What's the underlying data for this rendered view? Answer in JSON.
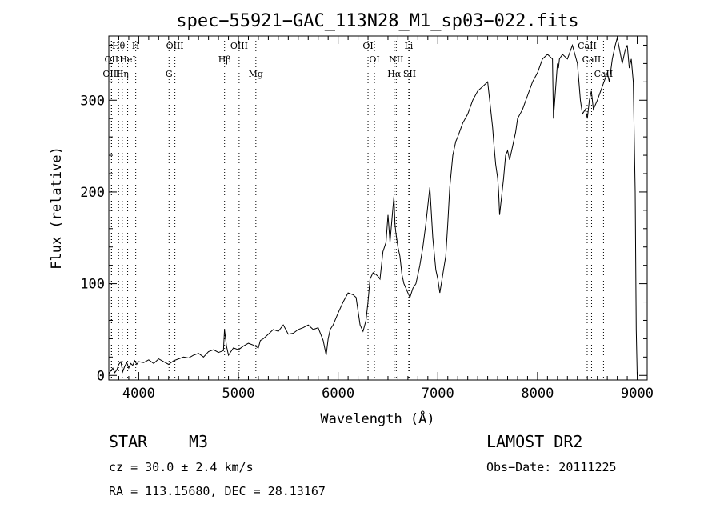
{
  "chart_data": {
    "type": "line",
    "title": "spec−55921−GAC_113N28_M1_sp03−022.fits",
    "xlabel": "Wavelength (Å)",
    "ylabel": "Flux (relative)",
    "xlim": [
      3700,
      9100
    ],
    "ylim": [
      -5,
      370
    ],
    "xticks": [
      4000,
      5000,
      6000,
      7000,
      8000,
      9000
    ],
    "yticks": [
      0,
      100,
      200,
      300
    ],
    "series": [
      {
        "name": "spectrum",
        "x": [
          3700,
          3720,
          3740,
          3760,
          3780,
          3800,
          3820,
          3840,
          3860,
          3880,
          3900,
          3920,
          3940,
          3960,
          3980,
          4000,
          4050,
          4100,
          4150,
          4200,
          4250,
          4300,
          4350,
          4400,
          4450,
          4500,
          4550,
          4600,
          4650,
          4700,
          4750,
          4800,
          4850,
          4860,
          4880,
          4900,
          4950,
          5000,
          5050,
          5100,
          5150,
          5200,
          5220,
          5250,
          5300,
          5350,
          5400,
          5450,
          5500,
          5550,
          5600,
          5650,
          5700,
          5750,
          5800,
          5850,
          5880,
          5900,
          5920,
          5950,
          6000,
          6050,
          6100,
          6150,
          6180,
          6200,
          6220,
          6250,
          6280,
          6300,
          6320,
          6350,
          6380,
          6400,
          6420,
          6450,
          6480,
          6500,
          6520,
          6540,
          6560,
          6570,
          6580,
          6600,
          6620,
          6640,
          6660,
          6680,
          6700,
          6720,
          6750,
          6780,
          6800,
          6820,
          6850,
          6880,
          6900,
          6920,
          6950,
          6980,
          7000,
          7020,
          7050,
          7080,
          7100,
          7120,
          7150,
          7180,
          7200,
          7250,
          7300,
          7350,
          7400,
          7450,
          7500,
          7520,
          7550,
          7560,
          7580,
          7600,
          7610,
          7620,
          7640,
          7660,
          7680,
          7700,
          7720,
          7750,
          7780,
          7800,
          7850,
          7900,
          7950,
          8000,
          8050,
          8100,
          8150,
          8160,
          8180,
          8200,
          8210,
          8220,
          8250,
          8300,
          8350,
          8400,
          8430,
          8450,
          8480,
          8500,
          8520,
          8540,
          8560,
          8600,
          8650,
          8700,
          8720,
          8750,
          8780,
          8800,
          8850,
          8880,
          8900,
          8920,
          8940,
          8960,
          8980,
          8990,
          9000
        ],
        "values": [
          2,
          5,
          8,
          3,
          6,
          12,
          15,
          4,
          10,
          14,
          8,
          13,
          11,
          16,
          12,
          15,
          14,
          17,
          13,
          18,
          15,
          12,
          16,
          18,
          20,
          19,
          22,
          24,
          20,
          26,
          28,
          25,
          27,
          50,
          32,
          22,
          30,
          28,
          32,
          35,
          33,
          30,
          38,
          40,
          45,
          50,
          48,
          55,
          45,
          46,
          50,
          52,
          55,
          50,
          52,
          38,
          22,
          40,
          50,
          55,
          68,
          80,
          90,
          88,
          85,
          70,
          55,
          48,
          60,
          80,
          105,
          112,
          110,
          108,
          105,
          135,
          145,
          175,
          145,
          170,
          195,
          165,
          155,
          140,
          130,
          110,
          100,
          95,
          90,
          85,
          95,
          100,
          110,
          120,
          140,
          165,
          185,
          205,
          150,
          115,
          105,
          90,
          110,
          130,
          165,
          205,
          240,
          255,
          260,
          275,
          285,
          300,
          310,
          315,
          320,
          300,
          270,
          255,
          230,
          215,
          200,
          175,
          195,
          215,
          240,
          245,
          235,
          250,
          265,
          280,
          290,
          305,
          320,
          330,
          345,
          350,
          345,
          280,
          310,
          340,
          335,
          345,
          350,
          345,
          360,
          340,
          300,
          285,
          290,
          280,
          300,
          310,
          290,
          300,
          315,
          330,
          320,
          345,
          360,
          368,
          340,
          355,
          360,
          335,
          345,
          320,
          200,
          50,
          0
        ]
      }
    ],
    "lines": [
      {
        "label": "Hθ",
        "x": 3798,
        "row": 1,
        "color": "#000000"
      },
      {
        "label": "H",
        "x": 3970,
        "row": 1,
        "color": "#000000"
      },
      {
        "label": "OIII",
        "x": 4363,
        "row": 1,
        "color": "#000000"
      },
      {
        "label": "OII",
        "x": 3727,
        "row": 2,
        "color": "#000000"
      },
      {
        "label": "HeI",
        "x": 3889,
        "row": 2,
        "color": "#000000"
      },
      {
        "label": "Hβ",
        "x": 4861,
        "row": 2,
        "color": "#000000"
      },
      {
        "label": "OIII",
        "x": 3727,
        "row": 3,
        "color": "#000000"
      },
      {
        "label": "Hη",
        "x": 3835,
        "row": 3,
        "color": "#000000"
      },
      {
        "label": "G",
        "x": 4304,
        "row": 3,
        "color": "#000000"
      },
      {
        "label": "Mg",
        "x": 5175,
        "row": 3,
        "color": "#000000"
      },
      {
        "label": "OIII",
        "x": 5007,
        "row": 1,
        "color": "#000000"
      },
      {
        "label": "OI",
        "x": 6300,
        "row": 1,
        "color": "#000000"
      },
      {
        "label": "Li",
        "x": 6708,
        "row": 1,
        "color": "#000000"
      },
      {
        "label": "OI",
        "x": 6364,
        "row": 2,
        "color": "#000000"
      },
      {
        "label": "NII",
        "x": 6583,
        "row": 2,
        "color": "#000000"
      },
      {
        "label": "Hα",
        "x": 6563,
        "row": 3,
        "color": "#000000"
      },
      {
        "label": "SII",
        "x": 6717,
        "row": 3,
        "color": "#000000"
      },
      {
        "label": "CaII",
        "x": 8498,
        "row": 1,
        "color": "#000000"
      },
      {
        "label": "CaII",
        "x": 8542,
        "row": 2,
        "color": "#000000"
      },
      {
        "label": "CaII",
        "x": 8662,
        "row": 3,
        "color": "#000000"
      }
    ]
  },
  "info": {
    "object_class": "STAR",
    "subclass": "M3",
    "survey": "LAMOST DR2",
    "cz": "cz = 30.0 ± 2.4 km/s",
    "obs_date": "Obs−Date: 20111225",
    "coords": "RA = 113.15680, DEC =  28.13167"
  }
}
